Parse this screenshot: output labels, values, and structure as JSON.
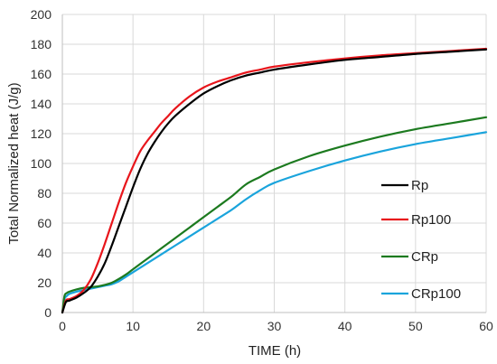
{
  "chart_data": {
    "type": "line",
    "title": "",
    "xlabel": "TIME (h)",
    "ylabel": "Total Normalized heat (J/g)",
    "xlim": [
      0,
      60
    ],
    "ylim": [
      0,
      200
    ],
    "xticks": [
      0,
      10,
      20,
      30,
      40,
      50,
      60
    ],
    "yticks": [
      0,
      20,
      40,
      60,
      80,
      100,
      120,
      140,
      160,
      180,
      200
    ],
    "grid": true,
    "legend_position": "right",
    "series": [
      {
        "name": "Rp",
        "color": "#000000",
        "x": [
          0,
          0.5,
          1,
          2,
          3,
          4,
          5,
          6,
          7,
          8,
          9,
          10,
          11,
          12,
          13,
          14,
          15,
          16,
          18,
          20,
          22,
          24,
          26,
          28,
          30,
          35,
          40,
          45,
          50,
          55,
          60
        ],
        "y": [
          0,
          7,
          8,
          10,
          13,
          17,
          24,
          33,
          45,
          58,
          71,
          84,
          96,
          106,
          114,
          121,
          127,
          132,
          140,
          147,
          152,
          156,
          159,
          161,
          163,
          166.5,
          169.5,
          171.5,
          173.5,
          175,
          176.5
        ]
      },
      {
        "name": "Rp100",
        "color": "#e8151b",
        "x": [
          0,
          0.5,
          1,
          2,
          3,
          4,
          5,
          6,
          7,
          8,
          9,
          10,
          11,
          12,
          13,
          14,
          15,
          16,
          18,
          20,
          22,
          24,
          26,
          28,
          30,
          35,
          40,
          45,
          50,
          55,
          60
        ],
        "y": [
          0,
          8,
          9,
          11,
          15,
          22,
          33,
          46,
          60,
          74,
          87,
          98,
          108,
          115,
          121,
          127,
          132,
          137,
          145,
          151,
          155,
          158,
          161,
          163,
          165,
          168,
          170.5,
          172.5,
          174,
          175.5,
          177
        ]
      },
      {
        "name": "CRp",
        "color": "#1c7a1f",
        "x": [
          0,
          0.3,
          0.6,
          1,
          2,
          3,
          4,
          5,
          6,
          7,
          8,
          9,
          10,
          12,
          14,
          16,
          18,
          20,
          22,
          24,
          26,
          28,
          30,
          35,
          40,
          45,
          50,
          55,
          60
        ],
        "y": [
          0,
          11,
          13,
          14,
          15.5,
          16.5,
          17,
          17.5,
          18.5,
          20,
          22.5,
          25.5,
          29,
          36,
          43,
          50,
          57,
          64,
          71,
          78,
          86,
          91,
          96,
          105,
          112,
          118,
          123,
          127,
          131
        ]
      },
      {
        "name": "CRp100",
        "color": "#1aa4dc",
        "x": [
          0,
          0.3,
          0.6,
          1,
          2,
          3,
          4,
          5,
          6,
          7,
          8,
          9,
          10,
          12,
          14,
          16,
          18,
          20,
          22,
          24,
          26,
          28,
          30,
          35,
          40,
          45,
          50,
          55,
          60
        ],
        "y": [
          0,
          9,
          11,
          12.5,
          14,
          15,
          16,
          17,
          18,
          19,
          21,
          24,
          27,
          33,
          39,
          45,
          51,
          57,
          63,
          69,
          76,
          82,
          87,
          95,
          102,
          108,
          113,
          117,
          121
        ]
      }
    ]
  }
}
